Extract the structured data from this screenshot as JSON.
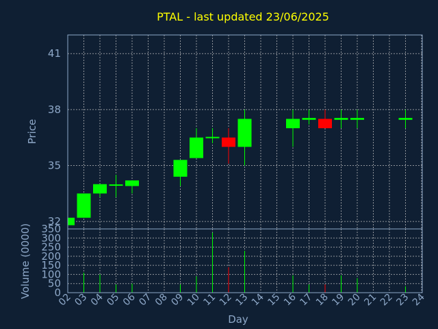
{
  "chart_data": {
    "type": "candlestick",
    "title": "PTAL - last updated 23/06/2025",
    "ylabel": "Price",
    "volume_ylabel": "Volume (0000)",
    "xlabel": "Day",
    "ylim": [
      31.6,
      42.0
    ],
    "volume_ylim": [
      0,
      350
    ],
    "yticks": [
      "32",
      "35",
      "38",
      "41"
    ],
    "volume_yticks": [
      "0",
      "50",
      "100",
      "150",
      "200",
      "250",
      "300",
      "350"
    ],
    "x_ticks": [
      "02",
      "03",
      "04",
      "05",
      "06",
      "07",
      "08",
      "09",
      "10",
      "11",
      "12",
      "13",
      "14",
      "15",
      "16",
      "17",
      "18",
      "19",
      "20",
      "21",
      "22",
      "23",
      "24"
    ],
    "grid": true,
    "colors": {
      "up": "#00ff00",
      "down": "#ff0000",
      "background": "#0f1f33",
      "text": "#8ea8c8",
      "title": "#ffff00"
    },
    "candles": [
      {
        "day": "02",
        "open": 31.8,
        "high": 32.2,
        "low": 31.8,
        "close": 32.2,
        "volume": 5
      },
      {
        "day": "03",
        "open": 32.2,
        "high": 33.5,
        "low": 32.2,
        "close": 33.5,
        "volume": 110
      },
      {
        "day": "04",
        "open": 33.5,
        "high": 34.0,
        "low": 33.3,
        "close": 34.0,
        "volume": 100
      },
      {
        "day": "05",
        "open": 33.9,
        "high": 34.5,
        "low": 33.3,
        "close": 33.95,
        "volume": 45
      },
      {
        "day": "06",
        "open": 33.9,
        "high": 34.2,
        "low": 33.5,
        "close": 34.2,
        "volume": 50
      },
      {
        "day": "09",
        "open": 34.4,
        "high": 35.3,
        "low": 33.9,
        "close": 35.3,
        "volume": 45
      },
      {
        "day": "10",
        "open": 35.4,
        "high": 37.0,
        "low": 35.4,
        "close": 36.5,
        "volume": 90
      },
      {
        "day": "11",
        "open": 36.5,
        "high": 37.0,
        "low": 36.2,
        "close": 36.5,
        "volume": 330
      },
      {
        "day": "12",
        "open": 36.5,
        "high": 37.0,
        "low": 35.1,
        "close": 36.0,
        "volume": 140
      },
      {
        "day": "13",
        "open": 36.0,
        "high": 38.0,
        "low": 35.0,
        "close": 37.5,
        "volume": 230
      },
      {
        "day": "16",
        "open": 37.0,
        "high": 38.0,
        "low": 36.0,
        "close": 37.5,
        "volume": 95
      },
      {
        "day": "17",
        "open": 37.45,
        "high": 38.0,
        "low": 37.2,
        "close": 37.55,
        "volume": 45
      },
      {
        "day": "18",
        "open": 37.5,
        "high": 38.0,
        "low": 37.0,
        "close": 37.0,
        "volume": 45
      },
      {
        "day": "19",
        "open": 37.45,
        "high": 38.0,
        "low": 37.0,
        "close": 37.55,
        "volume": 95
      },
      {
        "day": "20",
        "open": 37.45,
        "high": 38.0,
        "low": 37.0,
        "close": 37.55,
        "volume": 80
      },
      {
        "day": "23",
        "open": 37.45,
        "high": 38.0,
        "low": 37.0,
        "close": 37.55,
        "volume": 35
      }
    ]
  }
}
